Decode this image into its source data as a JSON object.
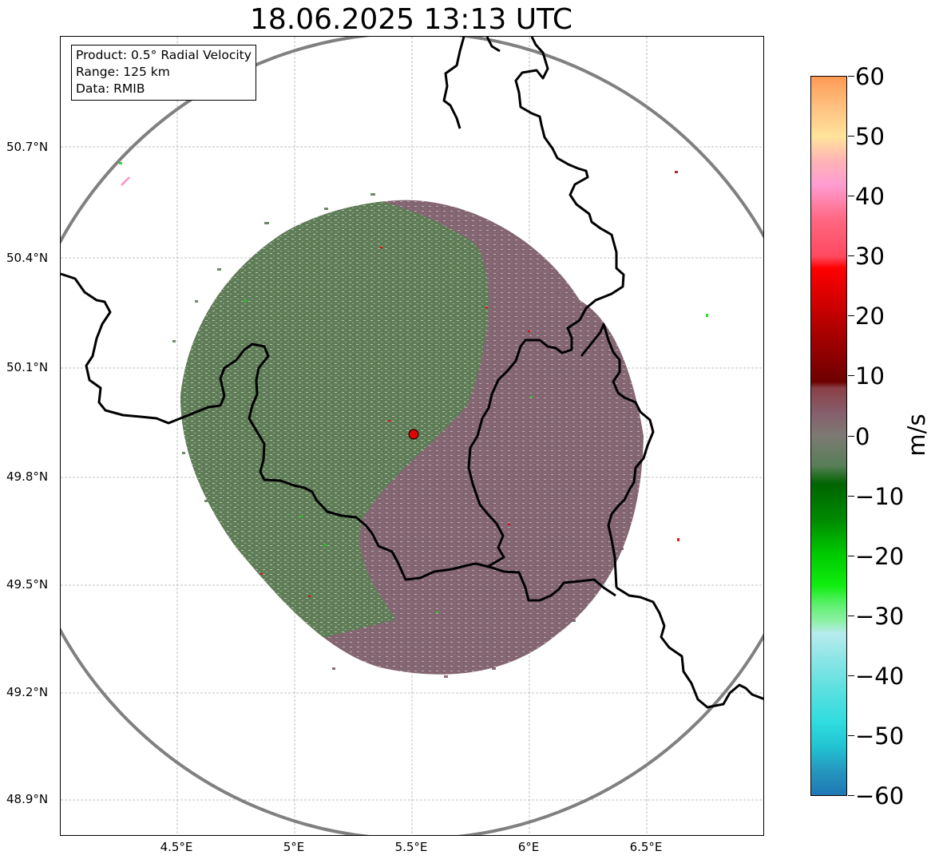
{
  "title": "18.06.2025 13:13 UTC",
  "info": {
    "product": "Product: 0.5° Radial Velocity",
    "range": "Range: 125 km",
    "source": "Data: RMIB"
  },
  "axes": {
    "lat_labels": [
      "50.7°N",
      "50.4°N",
      "50.1°N",
      "49.8°N",
      "49.5°N",
      "49.2°N",
      "48.9°N"
    ],
    "lon_labels": [
      "4.5°E",
      "5°E",
      "5.5°E",
      "6°E",
      "6.5°E"
    ]
  },
  "colorbar": {
    "unit": "m/s",
    "ticks": [
      "60",
      "50",
      "40",
      "30",
      "20",
      "10",
      "0",
      "−10",
      "−20",
      "−30",
      "−40",
      "−50",
      "−60"
    ],
    "vmin": -60,
    "vmax": 60,
    "stops": [
      {
        "v": -60,
        "c": "#1f77b4"
      },
      {
        "v": -56,
        "c": "#2596be"
      },
      {
        "v": -52,
        "c": "#22c2d2"
      },
      {
        "v": -48,
        "c": "#2edcde"
      },
      {
        "v": -42,
        "c": "#5fe0e0"
      },
      {
        "v": -37,
        "c": "#8fe5e6"
      },
      {
        "v": -33,
        "c": "#b6ecee"
      },
      {
        "v": -31,
        "c": "#8ff0a7"
      },
      {
        "v": -28,
        "c": "#5af06a"
      },
      {
        "v": -25,
        "c": "#10ee10"
      },
      {
        "v": -20,
        "c": "#00cc00"
      },
      {
        "v": -14,
        "c": "#008a00"
      },
      {
        "v": -8,
        "c": "#006400"
      },
      {
        "v": -5,
        "c": "#577e57"
      },
      {
        "v": 0,
        "c": "#7d7a73"
      },
      {
        "v": 4,
        "c": "#865e6c"
      },
      {
        "v": 8,
        "c": "#8a3f45"
      },
      {
        "v": 9,
        "c": "#6d0000"
      },
      {
        "v": 18,
        "c": "#b00000"
      },
      {
        "v": 28,
        "c": "#ff0000"
      },
      {
        "v": 30,
        "c": "#ff4a60"
      },
      {
        "v": 36,
        "c": "#ff6680"
      },
      {
        "v": 42,
        "c": "#ff9dd2"
      },
      {
        "v": 46,
        "c": "#ffb4b4"
      },
      {
        "v": 50,
        "c": "#ffe49c"
      },
      {
        "v": 55,
        "c": "#ffc080"
      },
      {
        "v": 60,
        "c": "#ff9a55"
      }
    ]
  },
  "colors": {
    "approaching": "#5d7d55",
    "receding": "#7e5f6c",
    "radar_site": "#dd0000",
    "range_ring": "#808080",
    "border": "#000000"
  }
}
